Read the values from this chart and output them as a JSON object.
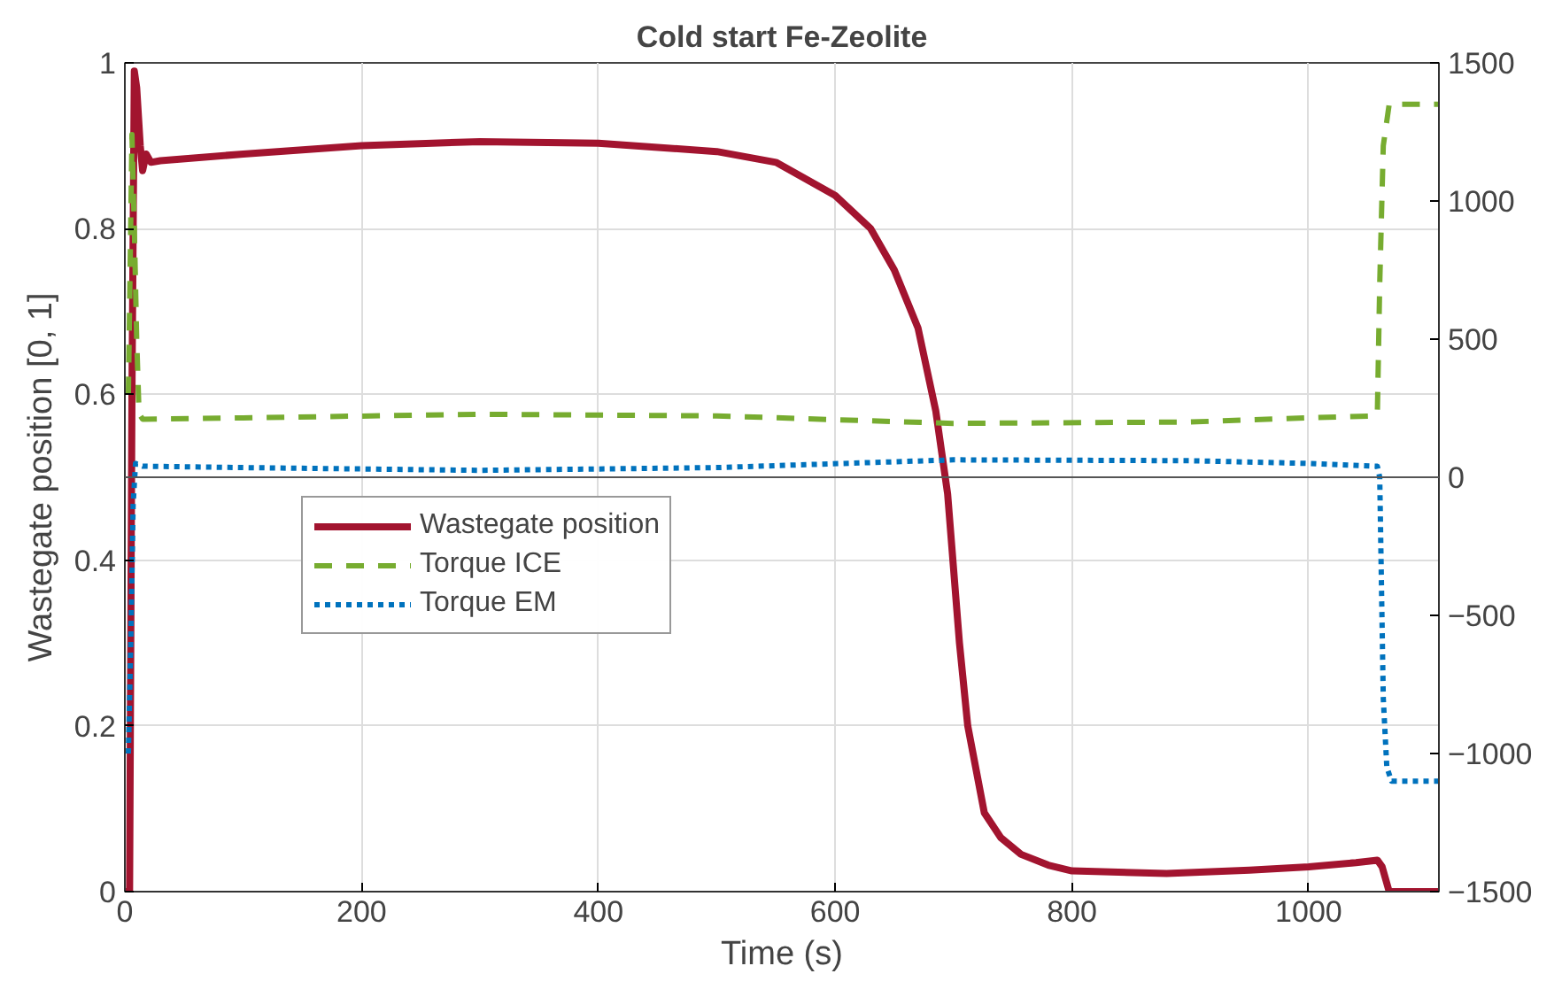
{
  "chart_data": {
    "type": "line",
    "title": "Cold start Fe-Zeolite",
    "xlabel": "Time (s)",
    "ylabel": "Wastegate position [0, 1]",
    "xlim": [
      0,
      1110
    ],
    "xticks": [
      0,
      200,
      400,
      600,
      800,
      1000
    ],
    "ylim": [
      0,
      1
    ],
    "yticks": [
      0,
      0.2,
      0.4,
      0.6,
      0.8,
      1
    ],
    "y2lim": [
      -1500,
      1500
    ],
    "y2ticks": [
      -1500,
      -1000,
      -500,
      0,
      500,
      1000,
      1500
    ],
    "grid": true,
    "legend": "left",
    "ref_lines": [
      {
        "axis": "y2",
        "value": 0,
        "label": null,
        "color": "#555555"
      }
    ],
    "series": [
      {
        "name": "Wastegate position",
        "color": "#a2142f",
        "line_style": "solid",
        "x": [
          0,
          4,
          6,
          8,
          10,
          13,
          15,
          18,
          22,
          30,
          100,
          200,
          300,
          400,
          500,
          550,
          600,
          630,
          650,
          670,
          685,
          695,
          705,
          712,
          726,
          740,
          757,
          780,
          800,
          880,
          950,
          1000,
          1040,
          1058,
          1062,
          1068,
          1110
        ],
        "values": [
          0,
          0,
          0.6,
          0.99,
          0.97,
          0.9,
          0.87,
          0.89,
          0.88,
          0.882,
          0.89,
          0.9,
          0.905,
          0.903,
          0.893,
          0.88,
          0.84,
          0.8,
          0.75,
          0.68,
          0.58,
          0.48,
          0.3,
          0.2,
          0.095,
          0.065,
          0.045,
          0.032,
          0.025,
          0.022,
          0.026,
          0.03,
          0.035,
          0.038,
          0.03,
          0,
          0
        ]
      },
      {
        "name": "Torque ICE",
        "color": "#77ac30",
        "line_style": "dashed",
        "axis": "y2",
        "x": [
          3,
          6,
          8,
          10,
          12,
          15,
          100,
          300,
          500,
          700,
          900,
          1000,
          1055,
          1058,
          1060,
          1063,
          1068,
          1110
        ],
        "values": [
          300,
          1240,
          900,
          500,
          230,
          210,
          215,
          228,
          222,
          195,
          200,
          215,
          222,
          230,
          700,
          1200,
          1350,
          1350
        ]
      },
      {
        "name": "Torque EM",
        "color": "#0072bd",
        "line_style": "dotted",
        "axis": "y2",
        "x": [
          3,
          5,
          7,
          9,
          15,
          100,
          300,
          500,
          700,
          900,
          1000,
          1058,
          1060,
          1063,
          1066,
          1070,
          1110
        ],
        "values": [
          -1000,
          -600,
          -100,
          50,
          40,
          35,
          25,
          35,
          63,
          60,
          50,
          40,
          0,
          -800,
          -1050,
          -1100,
          -1100
        ]
      }
    ]
  }
}
